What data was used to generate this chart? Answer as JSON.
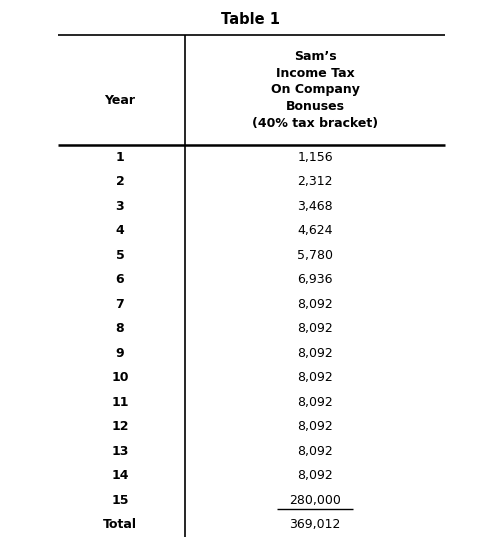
{
  "title": "Table 1",
  "col1_header": "Year",
  "col2_header": "Sam’s\nIncome Tax\nOn Company\nBonuses\n(40% tax bracket)",
  "years": [
    "1",
    "2",
    "3",
    "4",
    "5",
    "6",
    "7",
    "8",
    "9",
    "10",
    "11",
    "12",
    "13",
    "14",
    "15",
    "Total"
  ],
  "values": [
    "1,156",
    "2,312",
    "3,468",
    "4,624",
    "5,780",
    "6,936",
    "8,092",
    "8,092",
    "8,092",
    "8,092",
    "8,092",
    "8,092",
    "8,092",
    "8,092",
    "280,000",
    "369,012"
  ],
  "background_color": "#ffffff",
  "text_color": "#000000",
  "title_fontsize": 10.5,
  "header_fontsize": 9.0,
  "data_fontsize": 9.0,
  "fig_width": 5.02,
  "fig_height": 5.51,
  "dpi": 100
}
